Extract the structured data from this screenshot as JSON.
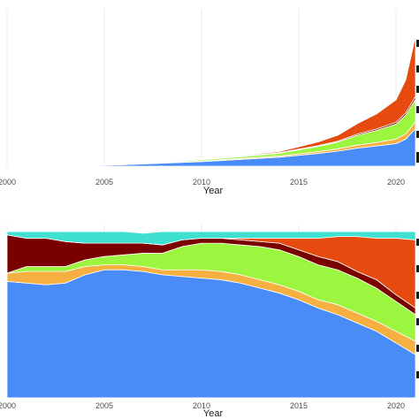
{
  "chart_data": [
    {
      "type": "area",
      "stacked": true,
      "title": "",
      "xlabel": "Year",
      "ylabel": "",
      "xlim": [
        2000,
        2021
      ],
      "ylim": [
        0,
        100
      ],
      "x_tick_labels": [
        "2000",
        "2005",
        "2010",
        "2015",
        "2020"
      ],
      "grid": true,
      "legend": "right (partially visible)",
      "x": [
        2004,
        2006,
        2008,
        2010,
        2012,
        2014,
        2016,
        2017,
        2018,
        2019,
        2020,
        2020.5,
        2021
      ],
      "series": [
        {
          "color": "#4a8cf7",
          "values": [
            0.2,
            1.0,
            2.0,
            3.0,
            4.5,
            6.0,
            8.5,
            10.0,
            12.0,
            13.5,
            15.0,
            18.0,
            25.0
          ]
        },
        {
          "color": "#f5b041",
          "values": [
            0.0,
            0.1,
            0.2,
            0.4,
            0.6,
            0.8,
            1.2,
            1.5,
            2.0,
            2.3,
            3.0,
            3.5,
            4.5
          ]
        },
        {
          "color": "#9cf53e",
          "values": [
            0.0,
            0.1,
            0.4,
            0.8,
            1.2,
            1.8,
            3.5,
            4.5,
            6.5,
            8.0,
            10.0,
            12.5,
            15.0
          ]
        },
        {
          "color": "#7a0000",
          "values": [
            0.1,
            0.2,
            0.3,
            0.3,
            0.3,
            0.4,
            0.5,
            0.6,
            0.8,
            1.0,
            1.2,
            1.5,
            2.0
          ]
        },
        {
          "color": "#e64a0e",
          "values": [
            0.0,
            0.0,
            0.1,
            0.3,
            0.5,
            0.8,
            2.5,
            4.0,
            7.0,
            10.0,
            15.0,
            22.0,
            40.0
          ]
        },
        {
          "color": "#40e0d0",
          "values": [
            0.0,
            0.0,
            0.0,
            0.0,
            0.0,
            0.0,
            0.1,
            0.2,
            0.3,
            0.4,
            0.6,
            0.8,
            1.5
          ]
        }
      ]
    },
    {
      "type": "area",
      "stacked": true,
      "percent": true,
      "title": "",
      "xlabel": "Year",
      "ylabel": "",
      "xlim": [
        2000,
        2021
      ],
      "ylim": [
        0,
        1
      ],
      "x_tick_labels": [
        "2000",
        "2005",
        "2010",
        "2015",
        "2020"
      ],
      "grid": true,
      "legend": "right (partially visible)",
      "x": [
        2000,
        2001,
        2002,
        2003,
        2004,
        2005,
        2006,
        2007,
        2008,
        2009,
        2010,
        2011,
        2012,
        2013,
        2014,
        2015,
        2016,
        2017,
        2018,
        2019,
        2020,
        2021
      ],
      "series": [
        {
          "color": "#4a8cf7",
          "values": [
            0.7,
            0.69,
            0.68,
            0.69,
            0.74,
            0.77,
            0.77,
            0.76,
            0.74,
            0.73,
            0.72,
            0.71,
            0.69,
            0.66,
            0.63,
            0.59,
            0.54,
            0.5,
            0.45,
            0.4,
            0.33,
            0.26
          ]
        },
        {
          "color": "#f5b041",
          "values": [
            0.05,
            0.07,
            0.08,
            0.07,
            0.05,
            0.03,
            0.03,
            0.03,
            0.03,
            0.04,
            0.05,
            0.05,
            0.05,
            0.05,
            0.05,
            0.05,
            0.05,
            0.06,
            0.06,
            0.06,
            0.07,
            0.08
          ]
        },
        {
          "color": "#9cf53e",
          "values": [
            0.0,
            0.03,
            0.03,
            0.03,
            0.04,
            0.05,
            0.06,
            0.08,
            0.1,
            0.14,
            0.16,
            0.17,
            0.18,
            0.2,
            0.21,
            0.21,
            0.21,
            0.21,
            0.21,
            0.2,
            0.18,
            0.16
          ]
        },
        {
          "color": "#7a0000",
          "values": [
            0.23,
            0.17,
            0.17,
            0.15,
            0.1,
            0.08,
            0.07,
            0.06,
            0.05,
            0.04,
            0.03,
            0.03,
            0.03,
            0.03,
            0.04,
            0.04,
            0.05,
            0.05,
            0.04,
            0.05,
            0.04,
            0.04
          ]
        },
        {
          "color": "#e64a0e",
          "values": [
            0.0,
            0.0,
            0.0,
            0.0,
            0.0,
            0.0,
            0.0,
            0.0,
            0.0,
            0.0,
            0.0,
            0.0,
            0.01,
            0.02,
            0.03,
            0.07,
            0.11,
            0.15,
            0.21,
            0.25,
            0.34,
            0.41
          ]
        },
        {
          "color": "#40e0d0",
          "values": [
            0.02,
            0.04,
            0.04,
            0.06,
            0.07,
            0.07,
            0.07,
            0.06,
            0.08,
            0.05,
            0.04,
            0.04,
            0.04,
            0.04,
            0.04,
            0.04,
            0.04,
            0.03,
            0.03,
            0.04,
            0.04,
            0.05
          ]
        }
      ]
    }
  ]
}
